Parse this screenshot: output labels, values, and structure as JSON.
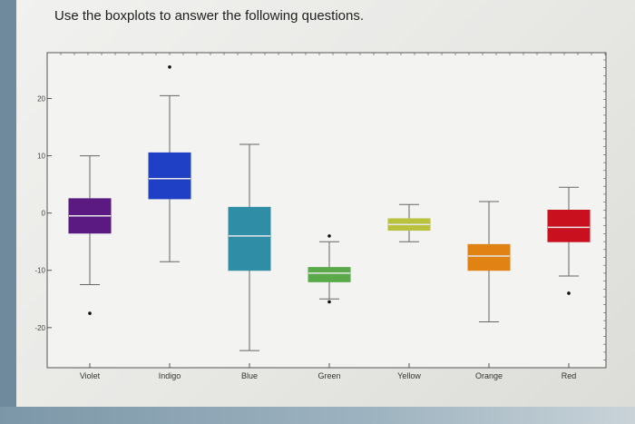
{
  "question_text": "Use the boxplots to answer the following questions.",
  "colors": {
    "page": "#ececea",
    "axis": "#555555",
    "median": "#e8e8e8"
  },
  "chart_data": {
    "type": "boxplot",
    "title": "",
    "xlabel": "",
    "ylabel": "",
    "ylim": [
      -27,
      28
    ],
    "yticks": [
      20,
      10,
      0,
      -10,
      -20
    ],
    "ytick_labels": [
      "20",
      "10",
      "0",
      "-10",
      "-20"
    ],
    "grid": false,
    "categories": [
      "Violet",
      "Indigo",
      "Blue",
      "Green",
      "Yellow",
      "Orange",
      "Red"
    ],
    "series": [
      {
        "name": "Violet",
        "color": "#5a1a82",
        "whisker_low": -12.5,
        "q1": -3.5,
        "median": -0.5,
        "q3": 2.5,
        "whisker_high": 10,
        "outliers": [
          -17.5
        ]
      },
      {
        "name": "Indigo",
        "color": "#1f3fc4",
        "whisker_low": -8.5,
        "q1": 2.5,
        "median": 6,
        "q3": 10.5,
        "whisker_high": 20.5,
        "outliers": [
          25.5
        ]
      },
      {
        "name": "Blue",
        "color": "#2f8ea6",
        "whisker_low": -24,
        "q1": -10,
        "median": -4,
        "q3": 1,
        "whisker_high": 12,
        "outliers": []
      },
      {
        "name": "Green",
        "color": "#5aaa4a",
        "whisker_low": -15,
        "q1": -12,
        "median": -10.5,
        "q3": -9.5,
        "whisker_high": -5,
        "outliers": [
          -15.5,
          -4
        ]
      },
      {
        "name": "Yellow",
        "color": "#b9c23c",
        "whisker_low": -5,
        "q1": -3,
        "median": -2,
        "q3": -1,
        "whisker_high": 1.5,
        "outliers": []
      },
      {
        "name": "Orange",
        "color": "#e08214",
        "whisker_low": -19,
        "q1": -10,
        "median": -7.5,
        "q3": -5.5,
        "whisker_high": 2,
        "outliers": []
      },
      {
        "name": "Red",
        "color": "#c8101e",
        "whisker_low": -11,
        "q1": -5,
        "median": -2.5,
        "q3": 0.5,
        "whisker_high": 4.5,
        "outliers": [
          -14
        ]
      }
    ]
  }
}
